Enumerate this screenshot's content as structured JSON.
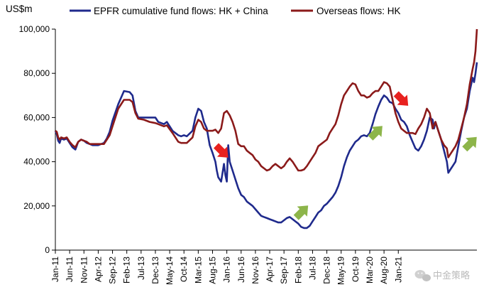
{
  "chart_data": {
    "type": "line",
    "ylabel": "US$m",
    "ylim": [
      0,
      100000
    ],
    "yticks": [
      0,
      20000,
      40000,
      60000,
      80000,
      100000
    ],
    "ytick_labels": [
      "0",
      "20,000",
      "40,000",
      "60,000",
      "80,000",
      "100,000"
    ],
    "xticks": [
      "Jan-11",
      "Jun-11",
      "Nov-11",
      "Apr-12",
      "Sep-12",
      "Feb-13",
      "Jul-13",
      "Dec-13",
      "May-14",
      "Oct-14",
      "Mar-15",
      "Aug-15",
      "Jan-16",
      "Jun-16",
      "Nov-16",
      "Apr-17",
      "Sep-17",
      "Feb-18",
      "Jul-18",
      "Dec-18",
      "May-19",
      "Oct-19",
      "Mar-20",
      "Aug-20",
      "Jan-21"
    ],
    "grid": false,
    "legend_position": "top",
    "series": [
      {
        "name": "EPFR cumulative fund flows: HK + China",
        "color": "#1f2a8c",
        "points": [
          [
            0,
            54000
          ],
          [
            0.5,
            52500
          ],
          [
            1,
            49500
          ],
          [
            1.5,
            48500
          ],
          [
            2,
            50500
          ],
          [
            3,
            50000
          ],
          [
            4,
            50500
          ],
          [
            5,
            48500
          ],
          [
            6,
            46500
          ],
          [
            7,
            45500
          ],
          [
            8,
            49000
          ],
          [
            9,
            50000
          ],
          [
            10,
            49500
          ],
          [
            11,
            48500
          ],
          [
            12,
            48000
          ],
          [
            13,
            47500
          ],
          [
            14,
            47500
          ],
          [
            15,
            47500
          ],
          [
            17,
            48500
          ],
          [
            18,
            50500
          ],
          [
            19,
            53500
          ],
          [
            20,
            58500
          ],
          [
            22,
            66000
          ],
          [
            24,
            72000
          ],
          [
            26,
            71500
          ],
          [
            27,
            70000
          ],
          [
            28,
            63000
          ],
          [
            29,
            60000
          ],
          [
            31,
            60000
          ],
          [
            33,
            60000
          ],
          [
            35,
            60000
          ],
          [
            36,
            58000
          ],
          [
            38,
            57000
          ],
          [
            39,
            58000
          ],
          [
            41,
            54000
          ],
          [
            43,
            52000
          ],
          [
            44,
            51500
          ],
          [
            45,
            52000
          ],
          [
            46,
            51500
          ],
          [
            48,
            54000
          ],
          [
            49,
            60000
          ],
          [
            50,
            64000
          ],
          [
            51,
            63000
          ],
          [
            52,
            58000
          ],
          [
            53,
            55000
          ],
          [
            54,
            47500
          ],
          [
            55,
            44000
          ],
          [
            56,
            40000
          ],
          [
            56.5,
            36000
          ],
          [
            57,
            33000
          ],
          [
            58,
            31000
          ],
          [
            59,
            39000
          ],
          [
            59.5,
            34000
          ],
          [
            60,
            31000
          ],
          [
            60.5,
            47500
          ],
          [
            61,
            40000
          ],
          [
            62,
            36000
          ],
          [
            63,
            32000
          ],
          [
            64,
            28000
          ],
          [
            65,
            25000
          ],
          [
            66,
            24000
          ],
          [
            67,
            22000
          ],
          [
            68,
            21000
          ],
          [
            69,
            20000
          ],
          [
            70,
            18500
          ],
          [
            71,
            17000
          ],
          [
            72,
            15500
          ],
          [
            73,
            15000
          ],
          [
            74,
            14500
          ],
          [
            75,
            14000
          ],
          [
            76,
            13500
          ],
          [
            77,
            13000
          ],
          [
            78,
            12500
          ],
          [
            79,
            12500
          ],
          [
            80,
            13500
          ],
          [
            81,
            14500
          ],
          [
            82,
            15000
          ],
          [
            83,
            14000
          ],
          [
            84,
            13000
          ],
          [
            85,
            12000
          ],
          [
            86,
            10500
          ],
          [
            87,
            10000
          ],
          [
            88,
            10000
          ],
          [
            89,
            11000
          ],
          [
            90,
            13000
          ],
          [
            91,
            15000
          ],
          [
            92,
            17000
          ],
          [
            93,
            18000
          ],
          [
            94,
            20000
          ],
          [
            95,
            21000
          ],
          [
            96,
            22500
          ],
          [
            97,
            24000
          ],
          [
            98,
            26000
          ],
          [
            99,
            29000
          ],
          [
            100,
            33000
          ],
          [
            101,
            38000
          ],
          [
            102,
            42000
          ],
          [
            103,
            45000
          ],
          [
            104,
            47000
          ],
          [
            105,
            49000
          ],
          [
            106,
            50000
          ],
          [
            107,
            51500
          ],
          [
            108,
            52000
          ],
          [
            109,
            51500
          ],
          [
            110,
            53000
          ],
          [
            111,
            57000
          ],
          [
            112,
            61500
          ],
          [
            113,
            65000
          ],
          [
            114,
            68000
          ],
          [
            115,
            70000
          ],
          [
            116,
            69000
          ],
          [
            117,
            67000
          ],
          [
            118,
            66500
          ],
          [
            119,
            64000
          ],
          [
            120,
            62000
          ],
          [
            121,
            59000
          ],
          [
            122,
            58000
          ],
          [
            123,
            56000
          ],
          [
            124,
            52000
          ],
          [
            125,
            49000
          ],
          [
            126,
            46000
          ],
          [
            127,
            45000
          ],
          [
            128,
            47000
          ],
          [
            129,
            50000
          ],
          [
            130,
            54000
          ],
          [
            131,
            60000
          ],
          [
            132,
            59000
          ],
          [
            132.5,
            55000
          ],
          [
            133,
            58000
          ],
          [
            134,
            54000
          ],
          [
            135,
            50000
          ],
          [
            136,
            45000
          ],
          [
            137,
            40000
          ],
          [
            137.5,
            35000
          ],
          [
            138,
            36000
          ],
          [
            139,
            38000
          ],
          [
            140,
            40000
          ],
          [
            141,
            47000
          ],
          [
            142,
            54000
          ],
          [
            143,
            60000
          ],
          [
            144,
            64000
          ],
          [
            145,
            72000
          ],
          [
            146,
            78000
          ],
          [
            146.5,
            76000
          ],
          [
            147,
            80000
          ],
          [
            147.5,
            85000
          ]
        ]
      },
      {
        "name": "Overseas flows: HK",
        "color": "#8b1a1a",
        "points": [
          [
            0,
            54000
          ],
          [
            0.5,
            53500
          ],
          [
            1,
            51000
          ],
          [
            1.5,
            50000
          ],
          [
            2,
            51000
          ],
          [
            3,
            50500
          ],
          [
            4,
            51000
          ],
          [
            5,
            49000
          ],
          [
            6,
            47500
          ],
          [
            7,
            46500
          ],
          [
            8,
            49000
          ],
          [
            9,
            50000
          ],
          [
            10,
            49500
          ],
          [
            11,
            49000
          ],
          [
            12,
            48000
          ],
          [
            13,
            48000
          ],
          [
            14,
            48000
          ],
          [
            15,
            48000
          ],
          [
            17,
            48000
          ],
          [
            18,
            50000
          ],
          [
            19,
            52000
          ],
          [
            20,
            56000
          ],
          [
            22,
            64000
          ],
          [
            24,
            68000
          ],
          [
            26,
            68000
          ],
          [
            27,
            67000
          ],
          [
            28,
            62000
          ],
          [
            29,
            59500
          ],
          [
            31,
            59000
          ],
          [
            33,
            58000
          ],
          [
            35,
            57500
          ],
          [
            36,
            57000
          ],
          [
            38,
            56000
          ],
          [
            39,
            56500
          ],
          [
            41,
            53000
          ],
          [
            43,
            49000
          ],
          [
            44,
            48500
          ],
          [
            45,
            48500
          ],
          [
            46,
            48500
          ],
          [
            48,
            51000
          ],
          [
            49,
            56000
          ],
          [
            50,
            59000
          ],
          [
            51,
            58000
          ],
          [
            52,
            55000
          ],
          [
            53,
            54000
          ],
          [
            54,
            54000
          ],
          [
            55,
            54000
          ],
          [
            56,
            54500
          ],
          [
            57,
            53000
          ],
          [
            58,
            55000
          ],
          [
            59,
            62000
          ],
          [
            60,
            63000
          ],
          [
            61,
            61000
          ],
          [
            62,
            58000
          ],
          [
            63,
            54000
          ],
          [
            64,
            48000
          ],
          [
            65,
            47000
          ],
          [
            66,
            47000
          ],
          [
            67,
            45000
          ],
          [
            68,
            44000
          ],
          [
            69,
            43000
          ],
          [
            70,
            41000
          ],
          [
            71,
            40000
          ],
          [
            72,
            38000
          ],
          [
            73,
            37000
          ],
          [
            74,
            36000
          ],
          [
            75,
            36500
          ],
          [
            76,
            38000
          ],
          [
            77,
            39000
          ],
          [
            78,
            38000
          ],
          [
            79,
            37000
          ],
          [
            80,
            38000
          ],
          [
            81,
            40000
          ],
          [
            82,
            41500
          ],
          [
            83,
            40000
          ],
          [
            84,
            38000
          ],
          [
            85,
            36000
          ],
          [
            86,
            36000
          ],
          [
            87,
            36500
          ],
          [
            88,
            38000
          ],
          [
            89,
            40000
          ],
          [
            90,
            42000
          ],
          [
            91,
            44000
          ],
          [
            92,
            47000
          ],
          [
            93,
            48000
          ],
          [
            94,
            49000
          ],
          [
            95,
            50000
          ],
          [
            96,
            53000
          ],
          [
            97,
            55000
          ],
          [
            98,
            57000
          ],
          [
            99,
            61000
          ],
          [
            100,
            66000
          ],
          [
            101,
            70000
          ],
          [
            102,
            72000
          ],
          [
            103,
            74000
          ],
          [
            104,
            75500
          ],
          [
            105,
            75000
          ],
          [
            106,
            72000
          ],
          [
            107,
            70000
          ],
          [
            108,
            70000
          ],
          [
            109,
            69000
          ],
          [
            110,
            69500
          ],
          [
            111,
            71000
          ],
          [
            112,
            72000
          ],
          [
            113,
            72000
          ],
          [
            114,
            74000
          ],
          [
            115,
            76000
          ],
          [
            116,
            75500
          ],
          [
            117,
            74000
          ],
          [
            118,
            68000
          ],
          [
            119,
            62000
          ],
          [
            120,
            58000
          ],
          [
            121,
            55000
          ],
          [
            122,
            54000
          ],
          [
            123,
            53000
          ],
          [
            124,
            53000
          ],
          [
            125,
            53000
          ],
          [
            126,
            52500
          ],
          [
            127,
            55000
          ],
          [
            128,
            57000
          ],
          [
            129,
            60000
          ],
          [
            130,
            64000
          ],
          [
            131,
            62000
          ],
          [
            132,
            55000
          ],
          [
            133,
            58000
          ],
          [
            134,
            54000
          ],
          [
            135,
            50000
          ],
          [
            136,
            47500
          ],
          [
            137,
            46000
          ],
          [
            137.5,
            42000
          ],
          [
            138,
            43000
          ],
          [
            139,
            45000
          ],
          [
            140,
            47000
          ],
          [
            141,
            50000
          ],
          [
            142,
            55000
          ],
          [
            143,
            60000
          ],
          [
            144,
            66000
          ],
          [
            145,
            75000
          ],
          [
            146,
            82000
          ],
          [
            146.5,
            85000
          ],
          [
            147,
            90000
          ],
          [
            147.5,
            100000
          ]
        ]
      }
    ],
    "annotations": [
      {
        "kind": "arrow",
        "direction": "down",
        "color": "#e8211f",
        "x": 58,
        "y": 45000
      },
      {
        "kind": "arrow",
        "direction": "up",
        "color": "#8db54a",
        "x": 86,
        "y": 17000
      },
      {
        "kind": "arrow",
        "direction": "up",
        "color": "#8db54a",
        "x": 112,
        "y": 53000
      },
      {
        "kind": "arrow",
        "direction": "down",
        "color": "#e8211f",
        "x": 121,
        "y": 68500
      },
      {
        "kind": "arrow",
        "direction": "up",
        "color": "#8db54a",
        "x": 145,
        "y": 48000
      }
    ]
  },
  "watermark": {
    "text": "中金策略",
    "icon": "wechat-icon"
  }
}
